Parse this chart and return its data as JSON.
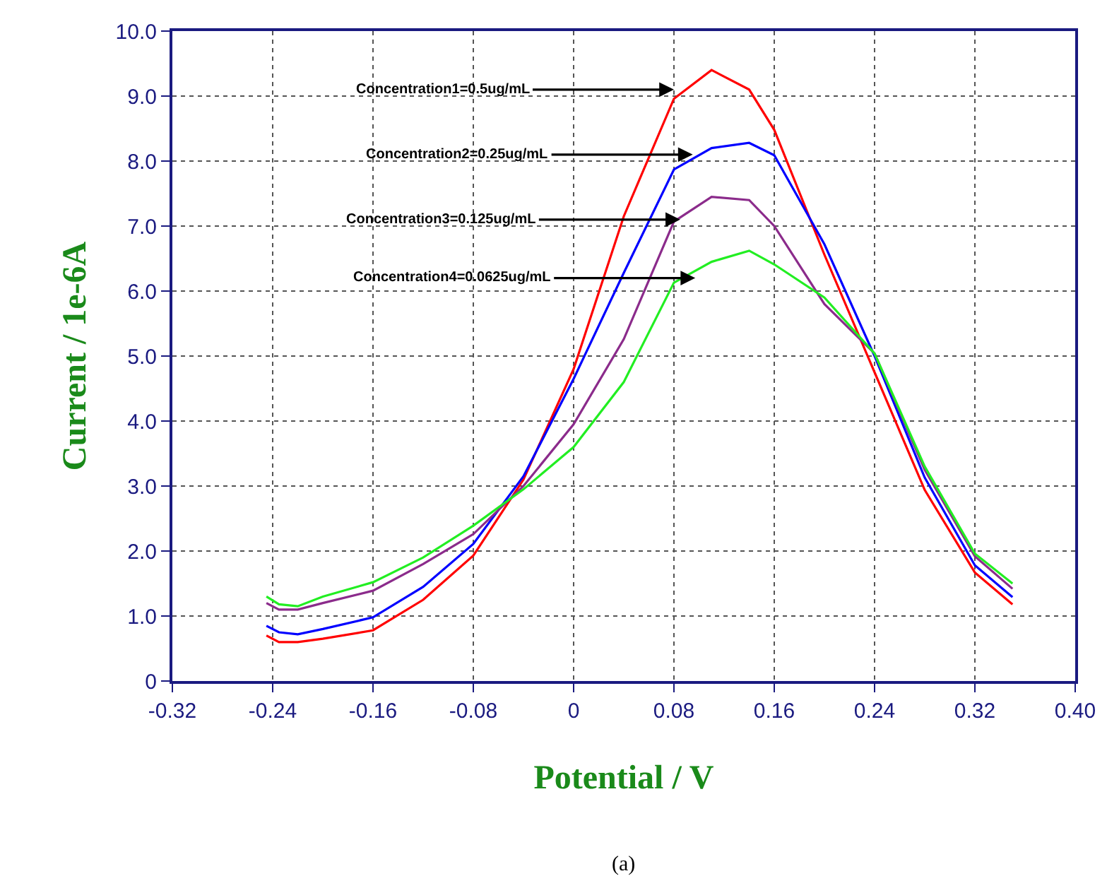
{
  "chart_data": {
    "type": "line",
    "xlabel": "Potential / V",
    "ylabel": "Current / 1e-6A",
    "x": [
      -0.245,
      -0.235,
      -0.22,
      -0.2,
      -0.16,
      -0.12,
      -0.08,
      -0.04,
      0,
      0.04,
      0.08,
      0.11,
      0.14,
      0.16,
      0.2,
      0.24,
      0.28,
      0.32,
      0.35
    ],
    "series": [
      {
        "color": "#ff0000",
        "values": [
          0.7,
          0.6,
          0.6,
          0.65,
          0.78,
          1.25,
          1.93,
          3.1,
          4.8,
          7.15,
          8.96,
          9.4,
          9.1,
          8.48,
          6.56,
          4.75,
          2.94,
          1.67,
          1.18
        ]
      },
      {
        "color": "#0000ff",
        "values": [
          0.85,
          0.75,
          0.72,
          0.8,
          0.98,
          1.45,
          2.11,
          3.15,
          4.65,
          6.28,
          7.87,
          8.2,
          8.28,
          8.09,
          6.72,
          5.0,
          3.13,
          1.78,
          1.29
        ]
      },
      {
        "color": "#8b2b8b",
        "values": [
          1.2,
          1.1,
          1.1,
          1.2,
          1.39,
          1.8,
          2.26,
          3.0,
          3.95,
          5.26,
          7.07,
          7.45,
          7.4,
          7.0,
          5.8,
          5.04,
          3.25,
          1.92,
          1.42
        ]
      },
      {
        "color": "#22ee22",
        "values": [
          1.3,
          1.18,
          1.15,
          1.3,
          1.52,
          1.9,
          2.39,
          2.95,
          3.6,
          4.6,
          6.13,
          6.45,
          6.62,
          6.41,
          5.9,
          5.04,
          3.3,
          1.96,
          1.5
        ]
      }
    ],
    "xlim": [
      -0.32,
      0.4
    ],
    "xticks": [
      -0.32,
      -0.24,
      -0.16,
      -0.08,
      0,
      0.08,
      0.16,
      0.24,
      0.32,
      {
        "value": 0.4,
        "label": "0.40"
      }
    ],
    "ylim": [
      0,
      10
    ],
    "yticks": [
      0,
      {
        "value": 1,
        "label": "1.0"
      },
      {
        "value": 2,
        "label": "2.0"
      },
      {
        "value": 3,
        "label": "3.0"
      },
      {
        "value": 4,
        "label": "4.0"
      },
      {
        "value": 5,
        "label": "5.0"
      },
      {
        "value": 6,
        "label": "6.0"
      },
      {
        "value": 7,
        "label": "7.0"
      },
      {
        "value": 8,
        "label": "8.0"
      },
      {
        "value": 9,
        "label": "9.0"
      },
      {
        "value": 10,
        "label": "10.0"
      }
    ],
    "grid": true,
    "marker": "none",
    "line_style": "solid",
    "annotations": [
      {
        "text": "Concentration1=0.5ug/mL",
        "x": 0.08,
        "y": 9.1
      },
      {
        "text": "Concentration2=0.25ug/mL",
        "x": 0.095,
        "y": 8.1
      },
      {
        "text": "Concentration3=0.125ug/mL",
        "x": 0.085,
        "y": 7.1
      },
      {
        "text": "Concentration4=0.0625ug/mL",
        "x": 0.097,
        "y": 6.2
      },
      "(a)"
    ]
  }
}
